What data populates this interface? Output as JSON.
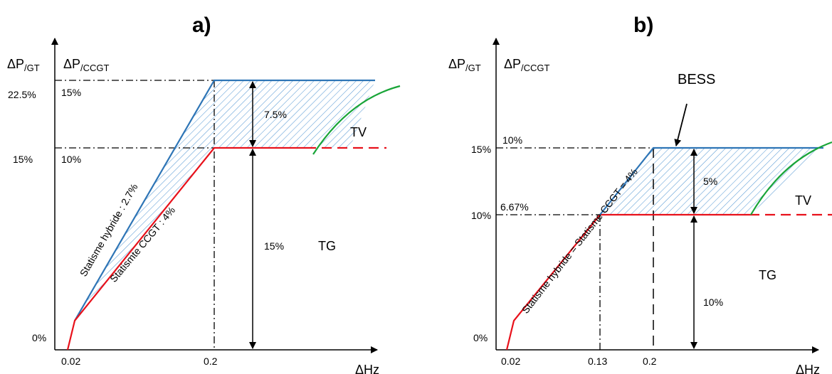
{
  "panel_a": {
    "title": "a)",
    "y_axis_left": "ΔP",
    "y_axis_left_sub": "/GT",
    "y_axis_right": "ΔP",
    "y_axis_right_sub": "/CCGT",
    "x_axis": "ΔHz",
    "tick_22_5": "22.5%",
    "tick_15_gt": "15%",
    "tick_0": "0%",
    "tick_15_ccgt": "15%",
    "tick_10_ccgt": "10%",
    "x_tick_002": "0.02",
    "x_tick_02": "0.2",
    "dim_75": "7.5%",
    "dim_15": "15%",
    "label_tv": "TV",
    "label_tg": "TG",
    "label_hybride": "Statisme hybride : 2.7%",
    "label_ccgt": "Statismte CCGT : 4%"
  },
  "panel_b": {
    "title": "b)",
    "y_axis_left": "ΔP",
    "y_axis_left_sub": "/GT",
    "y_axis_right": "ΔP",
    "y_axis_right_sub": "/CCGT",
    "x_axis": "ΔHz",
    "tick_15_gt": "15%",
    "tick_10_gt": "10%",
    "tick_0": "0%",
    "tick_10_ccgt": "10%",
    "tick_667_ccgt": "6.67%",
    "x_tick_002": "0.02",
    "x_tick_013": "0.13",
    "x_tick_02": "0.2",
    "dim_5": "5%",
    "dim_10": "10%",
    "label_tv": "TV",
    "label_tg": "TG",
    "label_bess": "BESS",
    "label_statisme": "Statisme hybride = Statisme CCGT = 4%"
  },
  "colors": {
    "blue": "#2e75b6",
    "red": "#e8111b",
    "green": "#19a538",
    "hatch": "#2e75b6"
  }
}
